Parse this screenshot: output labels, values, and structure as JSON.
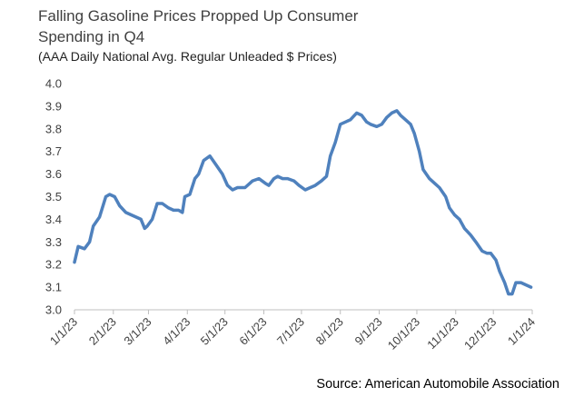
{
  "chart_data": {
    "type": "line",
    "title": "Falling Gasoline Prices Propped Up Consumer Spending in Q4",
    "subtitle": "(AAA Daily National Avg. Regular Unleaded $ Prices)",
    "source": "Source: American Automobile Association",
    "x": [
      "1/1/23",
      "1/4/23",
      "1/9/23",
      "1/13/23",
      "1/16/23",
      "1/21/23",
      "1/26/23",
      "1/29/23",
      "2/2/23",
      "2/6/23",
      "2/11/23",
      "2/15/23",
      "2/19/23",
      "2/23/23",
      "2/26/23",
      "2/28/23",
      "3/4/23",
      "3/8/23",
      "3/12/23",
      "3/17/23",
      "3/21/23",
      "3/25/23",
      "3/28/23",
      "3/30/23",
      "4/3/23",
      "4/7/23",
      "4/10/23",
      "4/14/23",
      "4/19/23",
      "4/24/23",
      "4/29/23",
      "5/3/23",
      "5/7/23",
      "5/11/23",
      "5/17/23",
      "5/23/23",
      "5/28/23",
      "6/2/23",
      "6/5/23",
      "6/9/23",
      "6/12/23",
      "6/16/23",
      "6/20/23",
      "6/25/23",
      "6/29/23",
      "7/4/23",
      "7/8/23",
      "7/12/23",
      "7/17/23",
      "7/21/23",
      "7/24/23",
      "7/28/23",
      "8/1/23",
      "8/5/23",
      "8/9/23",
      "8/14/23",
      "8/18/23",
      "8/22/23",
      "8/25/23",
      "8/30/23",
      "9/3/23",
      "9/7/23",
      "9/11/23",
      "9/15/23",
      "9/18/23",
      "9/22/23",
      "9/26/23",
      "9/29/23",
      "10/3/23",
      "10/6/23",
      "10/11/23",
      "10/15/23",
      "10/19/23",
      "10/24/23",
      "10/27/23",
      "10/31/23",
      "11/4/23",
      "11/8/23",
      "11/13/23",
      "11/17/23",
      "11/22/23",
      "11/26/23",
      "11/29/23",
      "12/3/23",
      "12/6/23",
      "12/10/23",
      "12/13/23",
      "12/16/23",
      "12/19/23",
      "12/23/23",
      "12/27/23",
      "12/31/23"
    ],
    "series": [
      {
        "color": "#4f81bd",
        "values": [
          3.21,
          3.28,
          3.27,
          3.3,
          3.37,
          3.41,
          3.5,
          3.51,
          3.5,
          3.46,
          3.43,
          3.42,
          3.41,
          3.4,
          3.36,
          3.37,
          3.4,
          3.47,
          3.47,
          3.45,
          3.44,
          3.44,
          3.43,
          3.5,
          3.51,
          3.58,
          3.6,
          3.66,
          3.68,
          3.64,
          3.6,
          3.55,
          3.53,
          3.54,
          3.54,
          3.57,
          3.58,
          3.56,
          3.55,
          3.58,
          3.59,
          3.58,
          3.58,
          3.57,
          3.55,
          3.53,
          3.54,
          3.55,
          3.57,
          3.59,
          3.68,
          3.74,
          3.82,
          3.83,
          3.84,
          3.87,
          3.86,
          3.83,
          3.82,
          3.81,
          3.82,
          3.85,
          3.87,
          3.88,
          3.86,
          3.84,
          3.82,
          3.78,
          3.7,
          3.62,
          3.58,
          3.56,
          3.54,
          3.5,
          3.45,
          3.42,
          3.4,
          3.36,
          3.33,
          3.3,
          3.26,
          3.25,
          3.25,
          3.22,
          3.17,
          3.12,
          3.07,
          3.07,
          3.12,
          3.12,
          3.11,
          3.1
        ]
      }
    ],
    "xlim": [
      "1/1/23",
      "1/1/24"
    ],
    "xticks": [
      "1/1/23",
      "2/1/23",
      "3/1/23",
      "4/1/23",
      "5/1/23",
      "6/1/23",
      "7/1/23",
      "8/1/23",
      "9/1/23",
      "10/1/23",
      "11/1/23",
      "12/1/23",
      "1/1/24"
    ],
    "ylim": [
      3.0,
      4.0
    ],
    "yticks": [
      {
        "value": 3.0,
        "label": "3.0"
      },
      3.1,
      3.2,
      3.3,
      3.4,
      3.5,
      3.6,
      3.7,
      3.8,
      3.9,
      {
        "value": 4.0,
        "label": "4.0"
      }
    ],
    "grid": false
  }
}
